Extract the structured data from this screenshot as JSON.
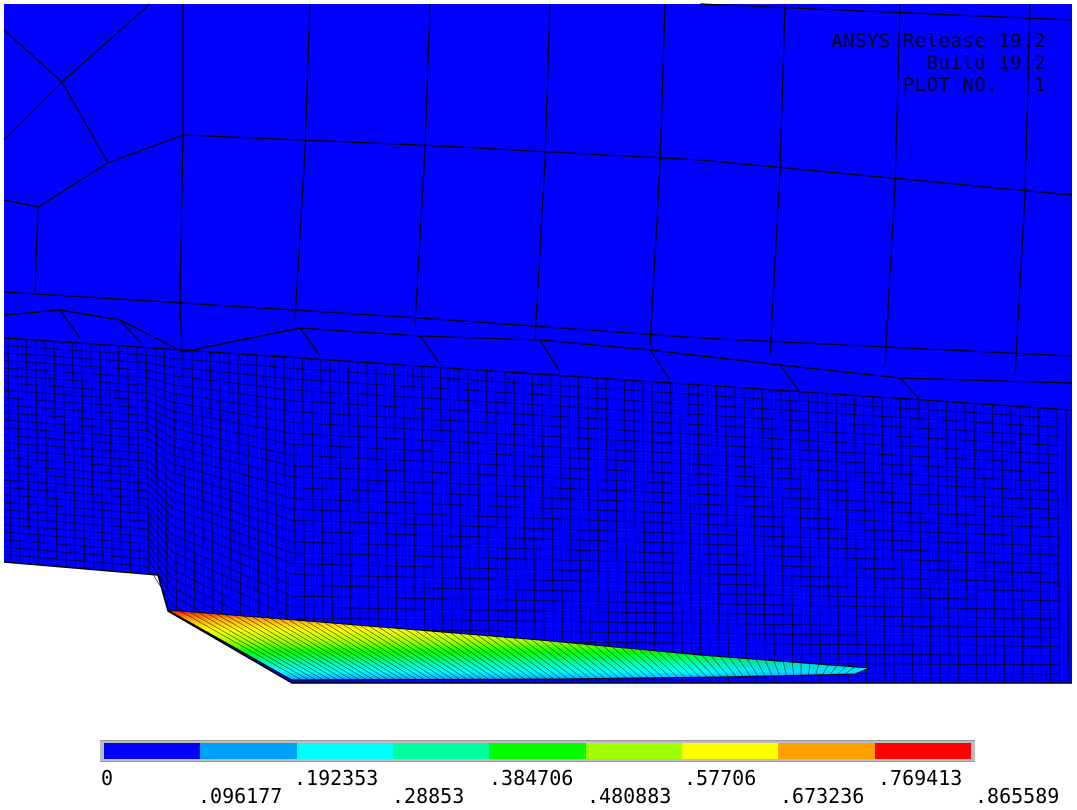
{
  "info": {
    "release": "ANSYS Release 19.2",
    "build": "Build 19.2",
    "plot_no": "PLOT NO.   1"
  },
  "colors": {
    "background": "#ffffff",
    "mesh_fill": "#0000ff",
    "mesh_line": "#000000",
    "legend_frame": "#bcbcbc"
  },
  "legend": {
    "swatch_colors": [
      "#0000ff",
      "#00a0ff",
      "#00ffff",
      "#00ff9f",
      "#00ff00",
      "#a0ff00",
      "#ffff00",
      "#ff9f00",
      "#ff0000"
    ],
    "labels_top": [
      "0",
      ".192353",
      ".384706",
      ".57706",
      ".769413"
    ],
    "labels_bottom": [
      ".096177",
      ".28853",
      ".480883",
      ".673236",
      ".865589"
    ]
  }
}
